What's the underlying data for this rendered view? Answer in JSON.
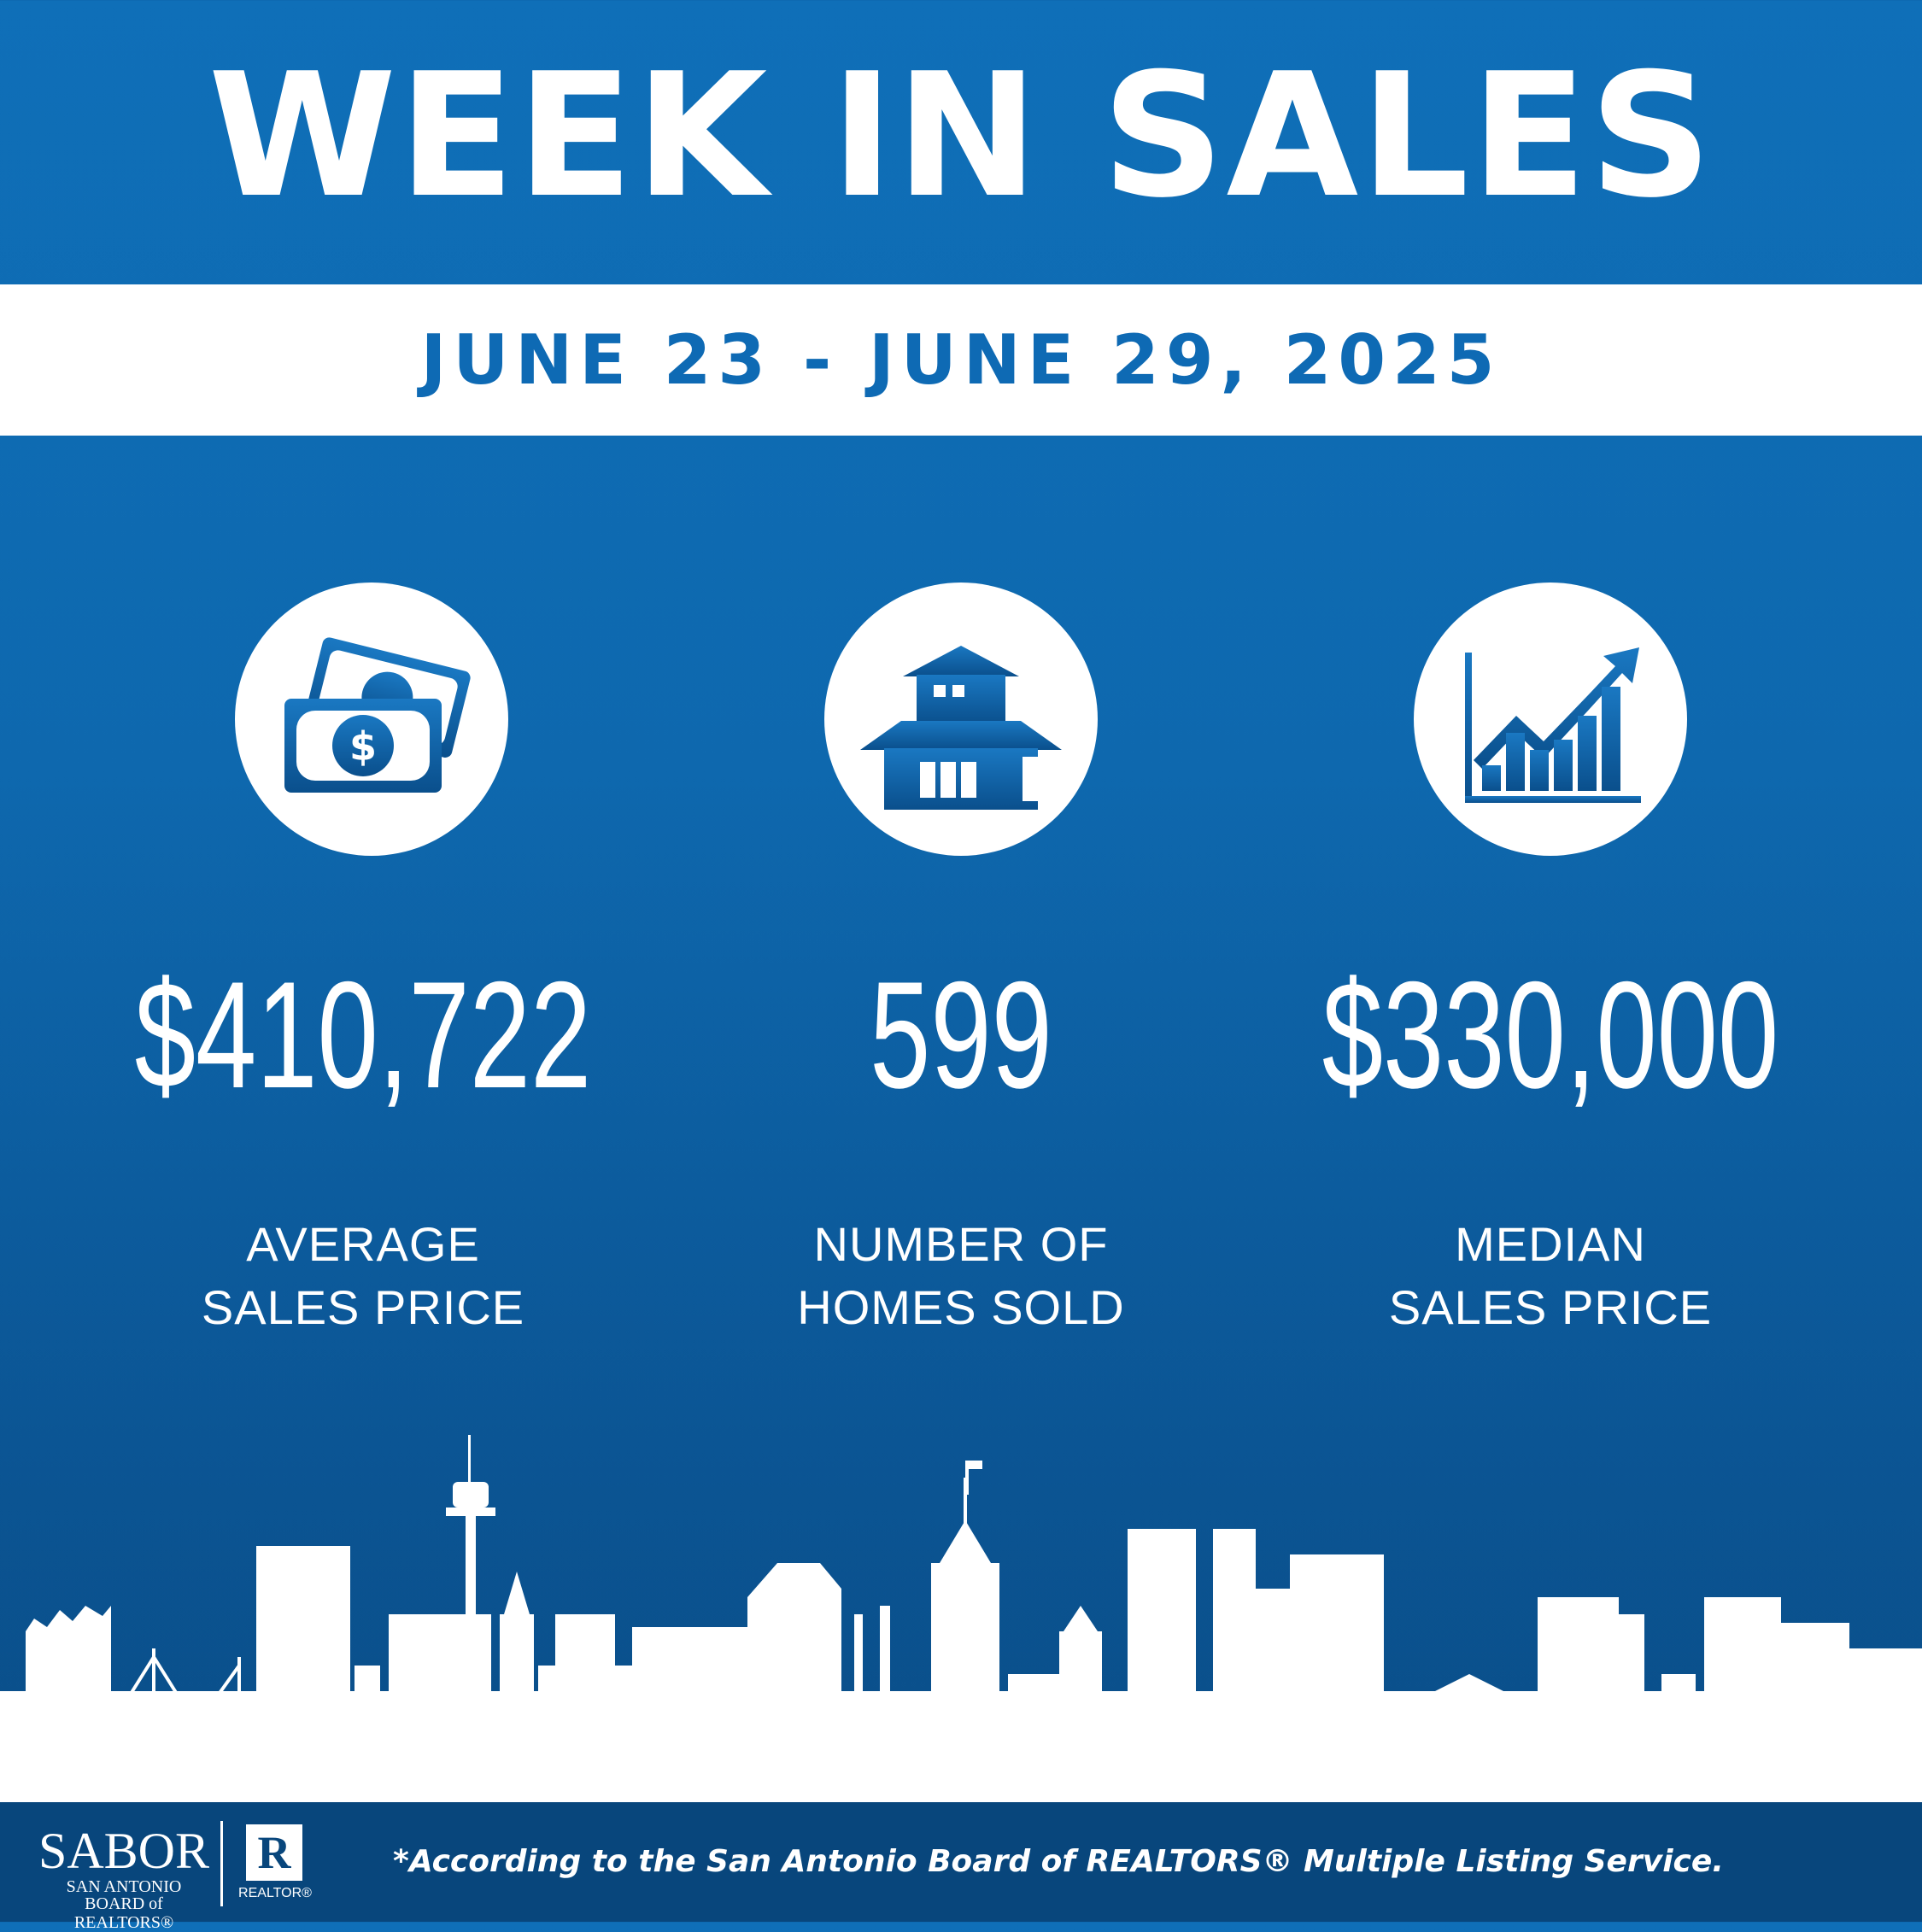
{
  "header": {
    "title": "WEEK IN SALES",
    "date_range": "JUNE 23 - JUNE 29, 2025"
  },
  "stats": [
    {
      "icon": "money-icon",
      "value": "$410,722",
      "label_line1": "AVERAGE",
      "label_line2": "SALES PRICE"
    },
    {
      "icon": "house-icon",
      "value": "599",
      "label_line1": "NUMBER OF",
      "label_line2": "HOMES SOLD"
    },
    {
      "icon": "growth-chart-icon",
      "value": "$330,000",
      "label_line1": "MEDIAN",
      "label_line2": "SALES PRICE"
    }
  ],
  "footer": {
    "logo_text": "SABOR",
    "logo_sub1": "SAN ANTONIO",
    "logo_sub2": "BOARD of REALTORS®",
    "realtor_mark": "R",
    "realtor_word": "REALTOR®",
    "footnote": "*According to the San Antonio Board of REALTORS® Multiple Listing Service."
  },
  "colors": {
    "background_top": "#0f6fb8",
    "background_bottom": "#0a4c85",
    "accent": "#0e6ab4",
    "footer": "#08467c",
    "text": "#ffffff"
  }
}
